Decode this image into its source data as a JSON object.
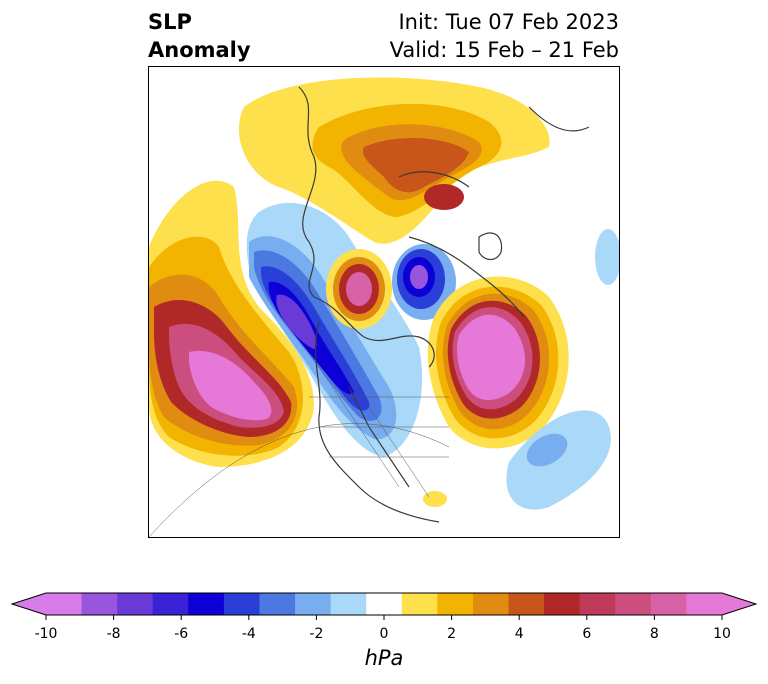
{
  "title": {
    "left_line1": "SLP",
    "left_line2": "Anomaly",
    "right_line1": "Init: Tue 07 Feb 2023",
    "right_line2": "Valid: 15 Feb – 21 Feb"
  },
  "colorbar": {
    "unit": "hPa",
    "extend": "both",
    "ticks": [
      "-10",
      "-8",
      "-6",
      "-4",
      "-2",
      "0",
      "2",
      "4",
      "6",
      "8",
      "10"
    ],
    "levels": [
      -10,
      -9,
      -8,
      -7,
      -6,
      -5,
      -4,
      -3,
      -2,
      -1,
      1,
      2,
      3,
      4,
      5,
      6,
      7,
      8,
      9,
      10
    ],
    "colors": [
      "#d77ce8",
      "#9a55de",
      "#6a3ad8",
      "#3a22d6",
      "#0c00d6",
      "#2a3ed8",
      "#4c78e2",
      "#78aef0",
      "#a9d8f8",
      "#ffffff",
      "#fde04c",
      "#f2b400",
      "#e08c10",
      "#c8561a",
      "#b02828",
      "#c03a5a",
      "#cc4e7e",
      "#d862a8",
      "#e678d8"
    ],
    "under_color": "#d77ce8",
    "over_color": "#e678d8"
  }
}
